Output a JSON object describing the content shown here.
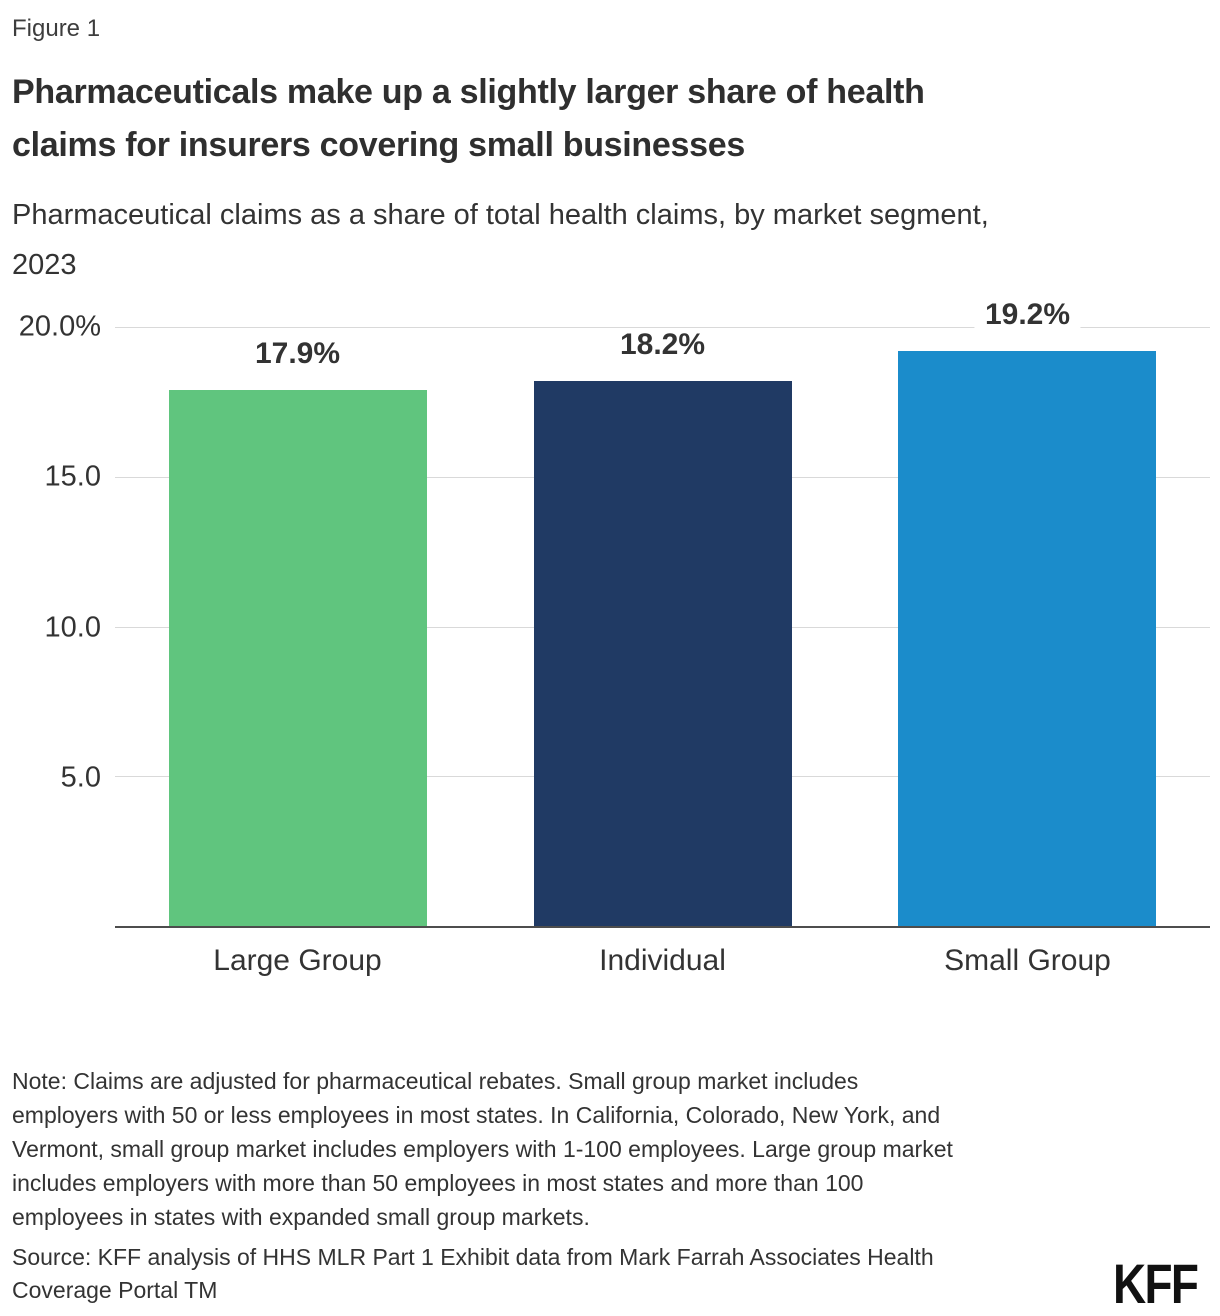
{
  "header": {
    "figure_label": "Figure 1",
    "title": "Pharmaceuticals make up a slightly larger share of health\nclaims for insurers covering small businesses",
    "subtitle": "Pharmaceutical claims as a share of total health claims, by market segment,\n2023"
  },
  "chart_data": {
    "type": "bar",
    "title": "Pharmaceuticals make up a slightly larger share of health claims for insurers covering small businesses",
    "subtitle": "Pharmaceutical claims as a share of total health claims, by market segment, 2023",
    "categories": [
      "Large Group",
      "Individual",
      "Small Group"
    ],
    "values": [
      17.9,
      18.2,
      19.2
    ],
    "value_labels": [
      "17.9%",
      "18.2%",
      "19.2%"
    ],
    "colors": [
      "#60c57e",
      "#203a64",
      "#1b8ccb"
    ],
    "xlabel": "",
    "ylabel": "",
    "ylim": [
      0,
      20
    ],
    "yticks": {
      "values": [
        20,
        15,
        10,
        5
      ],
      "labels": [
        "20.0%",
        "15.0",
        "10.0",
        "5.0"
      ]
    },
    "grid": true,
    "legend": "none"
  },
  "footer": {
    "note": "Note: Claims are adjusted for pharmaceutical rebates. Small group market includes\nemployers with 50 or less employees in most states. In California, Colorado, New York, and\nVermont, small group market includes employers with 1-100 employees. Large group market\nincludes employers with more than 50 employees in most states and more than 100\nemployees in states with expanded small group markets.",
    "source": "Source: KFF analysis of HHS MLR Part 1 Exhibit data from Mark Farrah Associates Health\nCoverage Portal TM",
    "logo_text": "KFF"
  }
}
